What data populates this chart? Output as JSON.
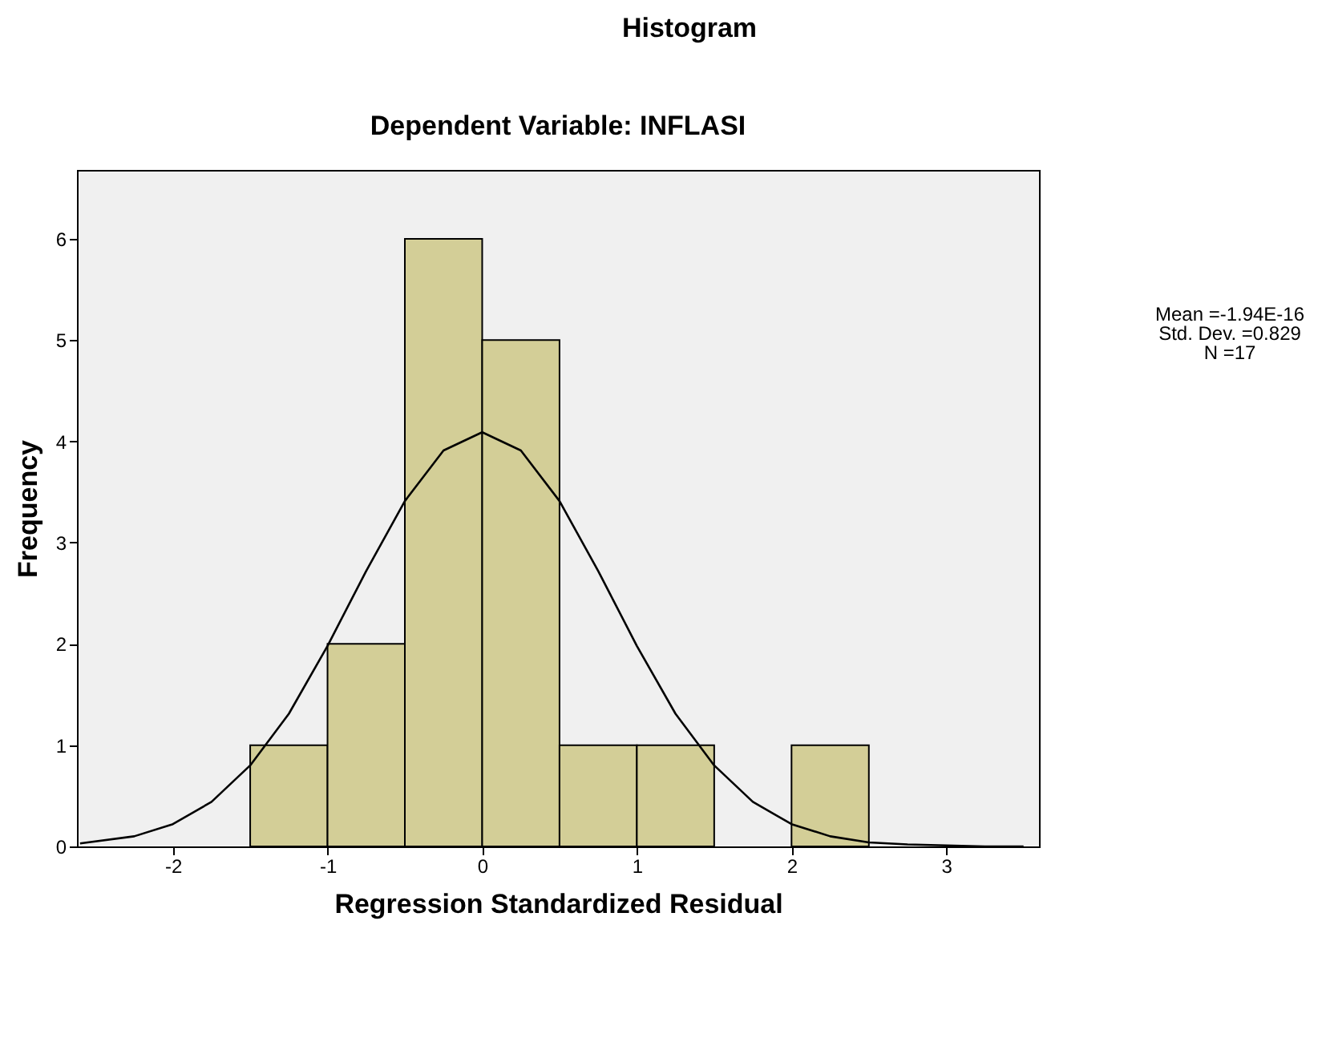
{
  "chart_data": {
    "type": "histogram",
    "title": "Histogram",
    "subtitle": "Dependent Variable: INFLASI",
    "xlabel": "Regression Standardized Residual",
    "ylabel": "Frequency",
    "annotations": [
      "Mean =-1.94E-16",
      "Std. Dev. =0.829",
      "N =17"
    ],
    "bins": [
      -1.5,
      -1,
      -0.5,
      0,
      0.5,
      1,
      1.5,
      2,
      2.5
    ],
    "series": [
      {
        "color": "#d3ce97",
        "values": [
          1,
          2,
          6,
          5,
          1,
          1,
          0,
          1
        ]
      },
      {
        "type": "line",
        "color": "#000000",
        "x": [
          -2.6,
          -2.25,
          -2,
          -1.75,
          -1.5,
          -1.25,
          -1,
          -0.75,
          -0.5,
          -0.25,
          0,
          0.25,
          0.5,
          0.75,
          1,
          1.25,
          1.5,
          1.75,
          2,
          2.25,
          2.5,
          2.75,
          3,
          3.25,
          3.5
        ],
        "values": [
          0.03,
          0.1,
          0.22,
          0.44,
          0.8,
          1.31,
          1.98,
          2.72,
          3.41,
          3.91,
          4.09,
          3.91,
          3.41,
          2.72,
          1.98,
          1.31,
          0.8,
          0.44,
          0.22,
          0.1,
          0.04,
          0.02,
          0.01,
          0,
          0
        ]
      }
    ],
    "xlim": [
      -2.62,
      3.6
    ],
    "ylim": [
      0,
      6.68
    ],
    "xticks": [
      -2,
      -1,
      0,
      1,
      2,
      3
    ],
    "yticks": [
      0,
      1,
      2,
      3,
      4,
      5,
      6
    ],
    "grid": false,
    "marker": "none",
    "line_style": "solid"
  }
}
